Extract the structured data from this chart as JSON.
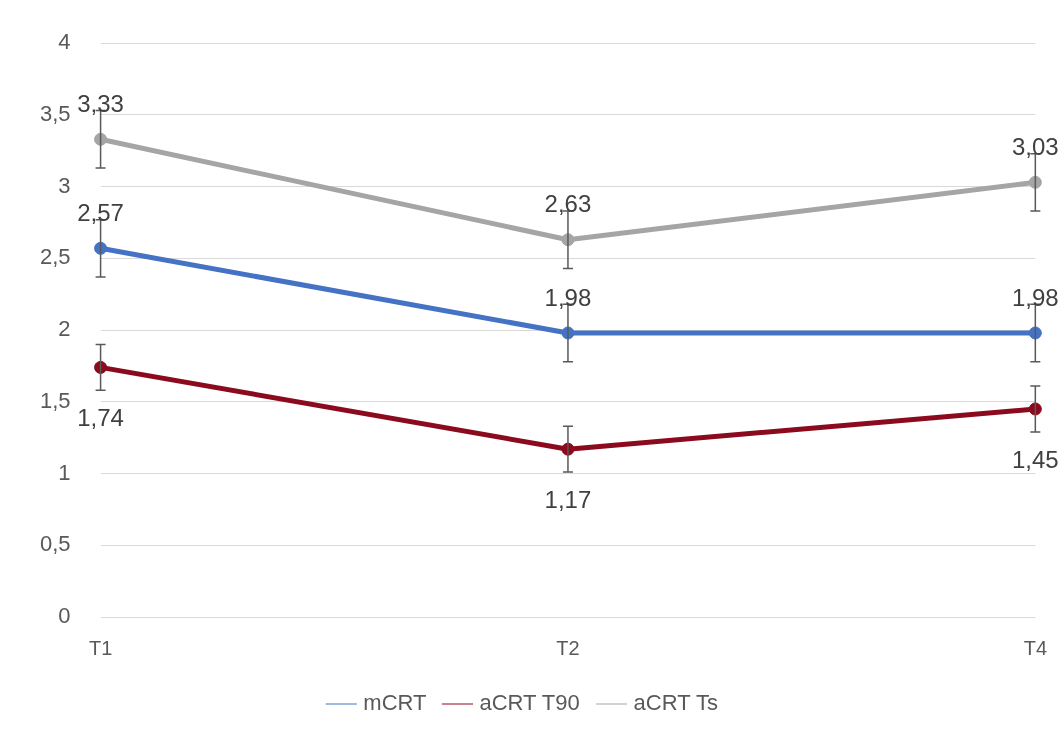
{
  "chart_data": {
    "type": "line",
    "categories": [
      "T1",
      "T2",
      "T4"
    ],
    "series": [
      {
        "name": "mCRT",
        "color": "#4472c4",
        "values": [
          2.57,
          1.98,
          1.98
        ],
        "errors": [
          0.2,
          0.2,
          0.2
        ],
        "value_labels": [
          "2,57",
          "1,98",
          "1,98"
        ]
      },
      {
        "name": "aCRT T90",
        "color": "#8b0a1e",
        "values": [
          1.74,
          1.17,
          1.45
        ],
        "errors": [
          0.16,
          0.16,
          0.16
        ],
        "value_labels": [
          "1,74",
          "1,17",
          "1,45"
        ]
      },
      {
        "name": "aCRT Ts",
        "color": "#a5a5a5",
        "values": [
          3.33,
          2.63,
          3.03
        ],
        "errors": [
          0.2,
          0.2,
          0.2
        ],
        "value_labels": [
          "3,33",
          "2,63",
          "3,03"
        ]
      }
    ],
    "ylim": [
      0,
      4
    ],
    "yticks": [
      0,
      {
        "value": 0.5,
        "label": "0,5"
      },
      1,
      {
        "value": 1.5,
        "label": "1,5"
      },
      2,
      {
        "value": 2.5,
        "label": "2,5"
      },
      3,
      {
        "value": 3.5,
        "label": "3,5"
      },
      4
    ],
    "grid": "y",
    "legend": "bottom",
    "marker": "circle",
    "line_style": "solid"
  }
}
